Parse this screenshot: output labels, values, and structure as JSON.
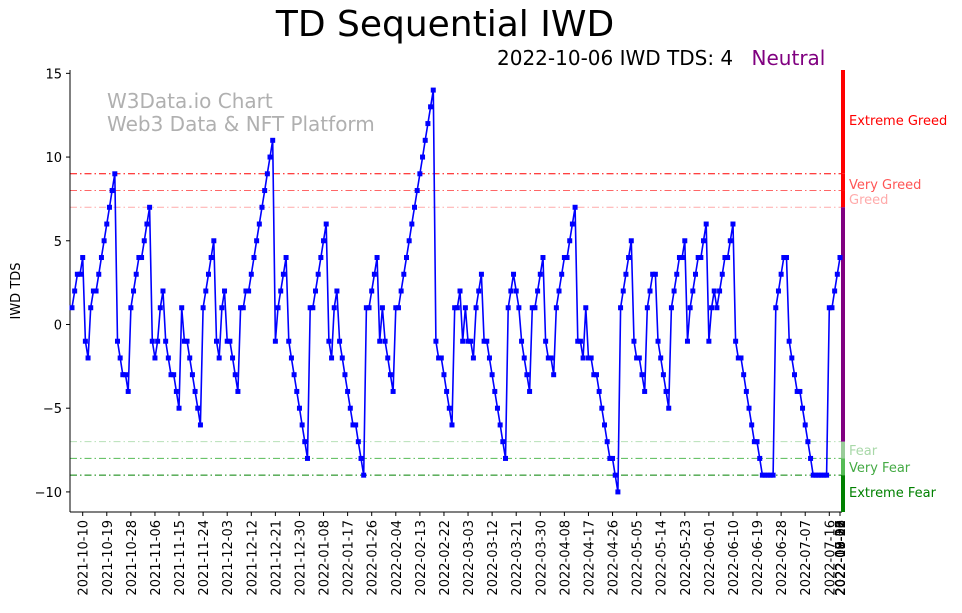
{
  "chart_data": {
    "type": "line",
    "title": "TD Sequential IWD",
    "subtitle": {
      "date": "2022-10-06",
      "label": "IWD TDS: 4",
      "status": "Neutral",
      "status_color": "#800080"
    },
    "watermark": [
      "W3Data.io Chart",
      "Web3 Data & NFT Platform"
    ],
    "ylabel": "IWD TDS",
    "xlabel": "",
    "ylim": [
      -11.2,
      15.2
    ],
    "yticks": [
      -10,
      -5,
      0,
      5,
      10,
      15
    ],
    "grid": false,
    "series": [
      {
        "color": "#0000ff",
        "marker": "square",
        "start_date": "2021-10-06",
        "values": [
          1,
          2,
          3,
          3,
          4,
          -1,
          -2,
          1,
          2,
          2,
          3,
          4,
          5,
          6,
          7,
          8,
          9,
          -1,
          -2,
          -3,
          -3,
          -4,
          1,
          2,
          3,
          4,
          4,
          5,
          6,
          7,
          -1,
          -2,
          -1,
          1,
          2,
          -1,
          -2,
          -3,
          -3,
          -4,
          -5,
          1,
          -1,
          -1,
          -2,
          -3,
          -4,
          -5,
          -6,
          1,
          2,
          3,
          4,
          5,
          -1,
          -2,
          1,
          2,
          -1,
          -1,
          -2,
          -3,
          -4,
          1,
          1,
          2,
          2,
          3,
          4,
          5,
          6,
          7,
          8,
          9,
          10,
          11,
          -1,
          1,
          2,
          3,
          4,
          -1,
          -2,
          -3,
          -4,
          -5,
          -6,
          -7,
          -8,
          1,
          1,
          2,
          3,
          4,
          5,
          6,
          -1,
          -2,
          1,
          2,
          -1,
          -2,
          -3,
          -4,
          -5,
          -6,
          -6,
          -7,
          -8,
          -9,
          1,
          1,
          2,
          3,
          4,
          -1,
          1,
          -1,
          -2,
          -3,
          -4,
          1,
          1,
          2,
          3,
          4,
          5,
          6,
          7,
          8,
          9,
          10,
          11,
          12,
          13,
          14,
          -1,
          -2,
          -2,
          -3,
          -4,
          -5,
          -6,
          1,
          1,
          2,
          -1,
          1,
          -1,
          -1,
          -2,
          1,
          2,
          3,
          -1,
          -1,
          -2,
          -3,
          -4,
          -5,
          -6,
          -7,
          -8,
          1,
          2,
          3,
          2,
          1,
          -1,
          -2,
          -3,
          -4,
          1,
          1,
          2,
          3,
          4,
          -1,
          -2,
          -2,
          -3,
          1,
          2,
          3,
          4,
          4,
          5,
          6,
          7,
          -1,
          -1,
          -2,
          1,
          -2,
          -2,
          -3,
          -3,
          -4,
          -5,
          -6,
          -7,
          -8,
          -8,
          -9,
          -10,
          1,
          2,
          3,
          4,
          5,
          -1,
          -2,
          -2,
          -3,
          -4,
          1,
          2,
          3,
          3,
          -1,
          -2,
          -3,
          -4,
          -5,
          1,
          2,
          3,
          4,
          4,
          5,
          -1,
          1,
          2,
          3,
          4,
          4,
          5,
          6,
          -1,
          1,
          2,
          1,
          2,
          3,
          4,
          4,
          5,
          6,
          -1,
          -2,
          -2,
          -3,
          -4,
          -5,
          -6,
          -7,
          -7,
          -8,
          -9,
          -9,
          -9,
          -9,
          -9,
          1,
          2,
          3,
          4,
          4,
          -1,
          -2,
          -3,
          -4,
          -4,
          -5,
          -6,
          -7,
          -8,
          -9,
          -9,
          -9,
          -9,
          -9,
          -9,
          1,
          1,
          2,
          3,
          4
        ]
      }
    ],
    "thresholds": [
      {
        "y": 9,
        "color": "#ff0000"
      },
      {
        "y": 8,
        "color": "#ff6666"
      },
      {
        "y": 7,
        "color": "#ffaaaa"
      },
      {
        "y": -7,
        "color": "#b8e0b8"
      },
      {
        "y": -8,
        "color": "#55bb55"
      },
      {
        "y": -9,
        "color": "#008000"
      }
    ],
    "zones": [
      {
        "label": "Extreme Greed",
        "from": 9,
        "to": 15.2,
        "color": "#ff0000",
        "label_y": 12.2,
        "text_color": "#ff0000"
      },
      {
        "label": "Very Greed",
        "from": 8,
        "to": 9,
        "color": "#ff0000",
        "label_y": 8.4,
        "text_color": "#ff5555"
      },
      {
        "label": "Greed",
        "from": 7,
        "to": 8,
        "color": "#ff0000",
        "label_y": 7.5,
        "text_color": "#ffaaaa"
      },
      {
        "label": "Fear",
        "from": -8,
        "to": -7,
        "color": "#99cc99",
        "label_y": -7.5,
        "text_color": "#a8d8a8"
      },
      {
        "label": "Very Fear",
        "from": -9,
        "to": -8,
        "color": "#55bb55",
        "label_y": -8.5,
        "text_color": "#44aa44"
      },
      {
        "label": "Extreme Fear",
        "from": -11.2,
        "to": -9,
        "color": "#008000",
        "label_y": -10.0,
        "text_color": "#008000"
      }
    ],
    "neutral_zone": {
      "from": -7,
      "to": 7,
      "color": "#800080"
    },
    "x_tick_labels": [
      "2021-10-10",
      "2021-10-19",
      "2021-10-28",
      "2021-11-06",
      "2021-11-15",
      "2021-11-24",
      "2021-12-03",
      "2021-12-12",
      "2021-12-21",
      "2021-12-30",
      "2022-01-08",
      "2022-01-17",
      "2022-01-26",
      "2022-02-04",
      "2022-02-13",
      "2022-02-22",
      "2022-03-03",
      "2022-03-12",
      "2022-03-21",
      "2022-03-30",
      "2022-04-08",
      "2022-04-17",
      "2022-04-26",
      "2022-05-05",
      "2022-05-14",
      "2022-05-23",
      "2022-06-01",
      "2022-06-10",
      "2022-06-19",
      "2022-06-28",
      "2022-07-07",
      "2022-07-16",
      "2022-07-25",
      "2022-08-03",
      "2022-08-12",
      "2022-08-21",
      "2022-08-30",
      "2022-09-08",
      "2022-09-17",
      "2022-09-26",
      "2022-10-05"
    ],
    "x_tick_start_index": 4,
    "x_tick_step": 9
  }
}
